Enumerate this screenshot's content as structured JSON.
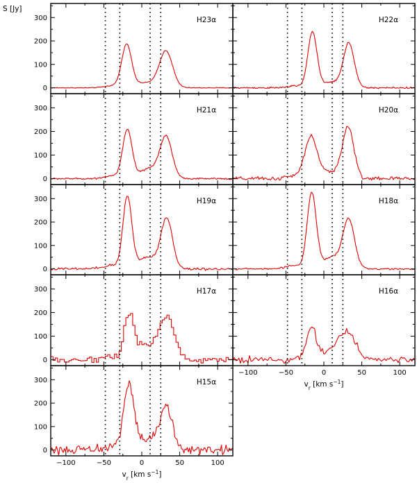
{
  "chart_data": {
    "type": "line",
    "ylabel": "S [Jy]",
    "xlabel_text": "v",
    "xlabel_sub": "r",
    "xlabel_unit_open": " [km s",
    "xlabel_unit_exp": "−1",
    "xlabel_unit_close": "]",
    "xlim": [
      -120,
      120
    ],
    "ylim": [
      -25,
      360
    ],
    "xticks": [
      -100,
      -50,
      0,
      50,
      100
    ],
    "yticks": [
      0,
      100,
      200,
      300
    ],
    "xtick_labels": [
      "−100",
      "−50",
      "0",
      "50",
      "100"
    ],
    "ytick_labels": [
      "0",
      "100",
      "200",
      "300"
    ],
    "reference_velocities": [
      -48,
      -29,
      11,
      25
    ],
    "panels": [
      {
        "name": "H23α",
        "row": 0,
        "col": 0,
        "noise": 1.5,
        "step": 1.0,
        "hist": false,
        "components": [
          {
            "v": -20,
            "amp": 180,
            "sigma": 6.5
          },
          {
            "v": 32,
            "amp": 150,
            "sigma": 8.5
          },
          {
            "v": 8,
            "amp": 22,
            "sigma": 18
          },
          {
            "v": -40,
            "amp": 8,
            "sigma": 10
          }
        ]
      },
      {
        "name": "H22α",
        "row": 0,
        "col": 1,
        "noise": 3,
        "step": 1.0,
        "hist": false,
        "components": [
          {
            "v": -15,
            "amp": 238,
            "sigma": 6.0
          },
          {
            "v": 33,
            "amp": 188,
            "sigma": 7.0
          },
          {
            "v": 12,
            "amp": 25,
            "sigma": 12
          },
          {
            "v": -38,
            "amp": 8,
            "sigma": 10
          }
        ]
      },
      {
        "name": "H21α",
        "row": 1,
        "col": 0,
        "noise": 3,
        "step": 1.0,
        "hist": false,
        "components": [
          {
            "v": -19,
            "amp": 205,
            "sigma": 6.2
          },
          {
            "v": 32,
            "amp": 175,
            "sigma": 8.0
          },
          {
            "v": 10,
            "amp": 42,
            "sigma": 12
          },
          {
            "v": -40,
            "amp": 12,
            "sigma": 10
          }
        ]
      },
      {
        "name": "H20α",
        "row": 1,
        "col": 1,
        "noise": 7,
        "step": 1.5,
        "hist": false,
        "components": [
          {
            "v": -17,
            "amp": 178,
            "sigma": 8.0
          },
          {
            "v": 32,
            "amp": 215,
            "sigma": 7.5
          },
          {
            "v": 10,
            "amp": 30,
            "sigma": 12
          },
          {
            "v": -40,
            "amp": 10,
            "sigma": 10
          }
        ]
      },
      {
        "name": "H19α",
        "row": 2,
        "col": 0,
        "noise": 5,
        "step": 1.5,
        "hist": false,
        "components": [
          {
            "v": -19,
            "amp": 305,
            "sigma": 5.8
          },
          {
            "v": 33,
            "amp": 210,
            "sigma": 7.5
          },
          {
            "v": 8,
            "amp": 50,
            "sigma": 14
          },
          {
            "v": -40,
            "amp": 15,
            "sigma": 10
          }
        ]
      },
      {
        "name": "H18α",
        "row": 2,
        "col": 1,
        "noise": 3,
        "step": 1.5,
        "hist": false,
        "components": [
          {
            "v": -16,
            "amp": 320,
            "sigma": 6.0
          },
          {
            "v": 33,
            "amp": 200,
            "sigma": 7.5
          },
          {
            "v": 12,
            "amp": 50,
            "sigma": 14
          },
          {
            "v": -40,
            "amp": 15,
            "sigma": 10
          }
        ]
      },
      {
        "name": "H17α",
        "row": 3,
        "col": 0,
        "noise": 13,
        "step": 3.0,
        "hist": true,
        "components": [
          {
            "v": -18,
            "amp": 190,
            "sigma": 6.5
          },
          {
            "v": 32,
            "amp": 175,
            "sigma": 9.5
          },
          {
            "v": 6,
            "amp": 60,
            "sigma": 14
          },
          {
            "v": -40,
            "amp": 15,
            "sigma": 10
          }
        ]
      },
      {
        "name": "H16α",
        "row": 3,
        "col": 1,
        "noise": 12,
        "step": 2.0,
        "hist": false,
        "components": [
          {
            "v": -16,
            "amp": 135,
            "sigma": 6.5
          },
          {
            "v": 30,
            "amp": 115,
            "sigma": 12
          },
          {
            "v": 8,
            "amp": 25,
            "sigma": 12
          }
        ]
      },
      {
        "name": "H15α",
        "row": 4,
        "col": 0,
        "noise": 17,
        "step": 1.5,
        "hist": false,
        "components": [
          {
            "v": -17,
            "amp": 270,
            "sigma": 7.0
          },
          {
            "v": 32,
            "amp": 180,
            "sigma": 8.5
          },
          {
            "v": 6,
            "amp": 40,
            "sigma": 12
          },
          {
            "v": -38,
            "amp": 15,
            "sigma": 10
          }
        ]
      }
    ]
  }
}
